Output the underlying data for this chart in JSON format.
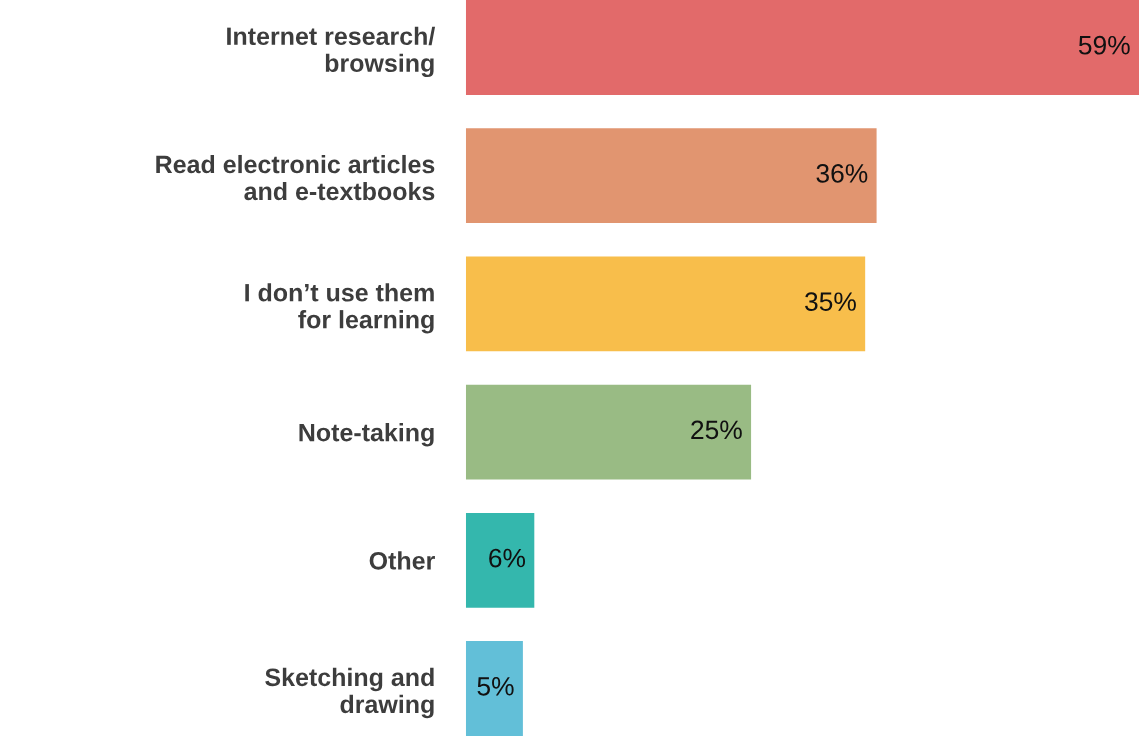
{
  "chart_data": {
    "type": "bar",
    "orientation": "horizontal",
    "categories": [
      "Internet research/\nbrowsing",
      "Read electronic articles\nand e-textbooks",
      "I don’t use them\nfor learning",
      "Note-taking",
      "Other",
      "Sketching and\ndrawing"
    ],
    "values": [
      59,
      36,
      35,
      25,
      6,
      5
    ],
    "colors": [
      "#e26a6a",
      "#e19570",
      "#f8be4b",
      "#99bb84",
      "#34b7ad",
      "#62bfd8"
    ],
    "value_labels": [
      "59%",
      "36%",
      "35%",
      "25%",
      "6%",
      "5%"
    ],
    "grid": false,
    "legend": false
  }
}
